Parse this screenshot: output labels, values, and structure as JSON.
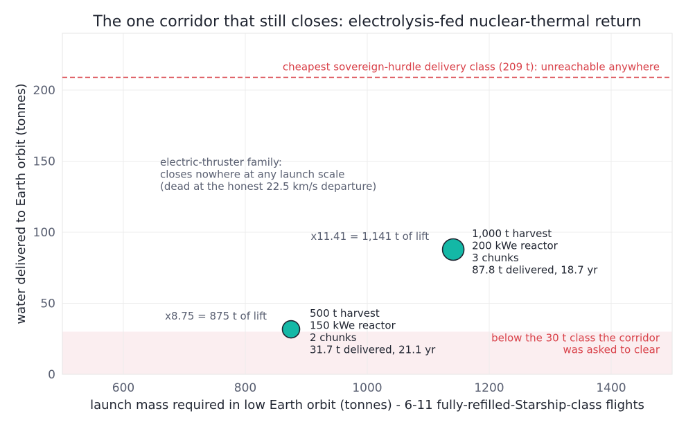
{
  "chart_data": {
    "type": "scatter",
    "title": "The one corridor that still closes: electrolysis-fed nuclear-thermal return",
    "xlabel": "launch mass required in low Earth orbit (tonnes) - 6-11 fully-refilled-Starship-class flights",
    "ylabel": "water delivered to Earth orbit (tonnes)",
    "xlim": [
      500,
      1500
    ],
    "ylim": [
      0,
      240
    ],
    "xticks": [
      600,
      800,
      1000,
      1200,
      1400
    ],
    "yticks": [
      0,
      50,
      100,
      150,
      200
    ],
    "grid": true,
    "point_color": "#14b8a6",
    "points": [
      {
        "x": 875,
        "y": 31.7,
        "label_lines": [
          "500 t harvest",
          "150 kWe reactor",
          "2 chunks",
          "31.7 t delivered, 21.1 yr"
        ],
        "multiplier_label": "x8.75 = 875 t of lift"
      },
      {
        "x": 1141,
        "y": 87.8,
        "label_lines": [
          "1,000 t harvest",
          "200 kWe reactor",
          "3 chunks",
          "87.8 t delivered, 18.7 yr"
        ],
        "multiplier_label": "x11.41 = 1,141 t of lift"
      }
    ],
    "reference_line": {
      "y": 209,
      "color": "#d9424a",
      "label": "cheapest sovereign-hurdle delivery class (209 t): unreachable anywhere"
    },
    "shaded_band": {
      "y_from": 0,
      "y_to": 30,
      "color": "#fbeef0",
      "label_lines": [
        "below the 30 t class the corridor",
        "was asked to clear"
      ]
    },
    "annotation": {
      "lines": [
        "electric-thruster family:",
        "closes nowhere at any launch scale",
        "(dead at the honest 22.5 km/s departure)"
      ]
    }
  }
}
